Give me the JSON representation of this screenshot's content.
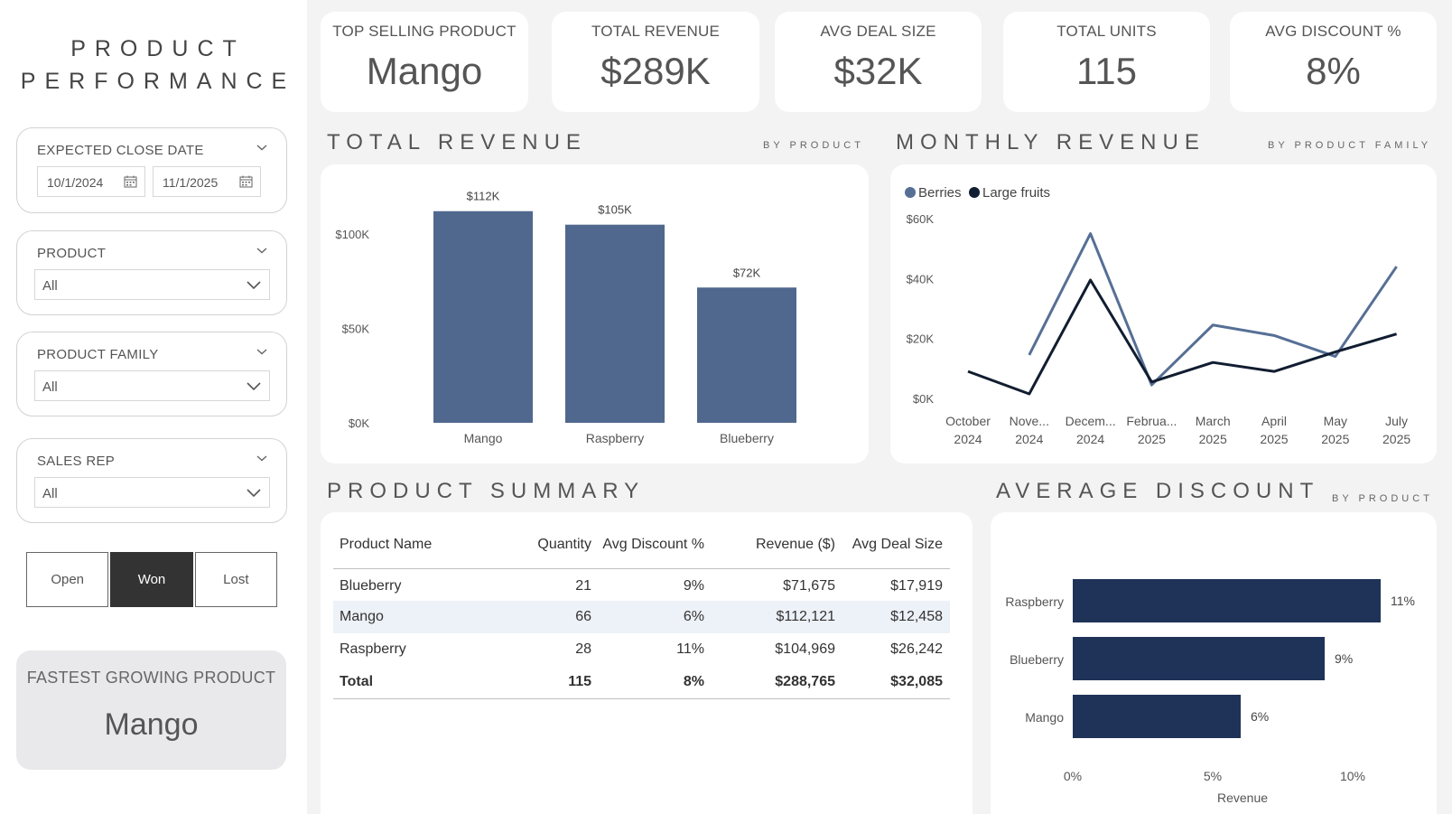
{
  "sidebar": {
    "title_line1": "PRODUCT",
    "title_line2": "PERFORMANCE",
    "close_date": {
      "label": "EXPECTED CLOSE DATE",
      "start": "10/1/2024",
      "end": "11/1/2025"
    },
    "product": {
      "label": "PRODUCT",
      "value": "All"
    },
    "product_family": {
      "label": "PRODUCT FAMILY",
      "value": "All"
    },
    "sales_rep": {
      "label": "SALES REP",
      "value": "All"
    },
    "status": {
      "open": "Open",
      "won": "Won",
      "lost": "Lost",
      "selected": "Won"
    },
    "fastest": {
      "label": "FASTEST GROWING PRODUCT",
      "value": "Mango"
    }
  },
  "kpis": {
    "top_product": {
      "label": "TOP SELLING PRODUCT",
      "value": "Mango"
    },
    "total_revenue": {
      "label": "TOTAL REVENUE",
      "value": "$289K"
    },
    "avg_deal": {
      "label": "AVG DEAL SIZE",
      "value": "$32K"
    },
    "total_units": {
      "label": "TOTAL UNITS",
      "value": "115"
    },
    "avg_discount": {
      "label": "AVG DISCOUNT %",
      "value": "8%"
    }
  },
  "sections": {
    "total_revenue": {
      "title": "TOTAL REVENUE",
      "sub": "BY PRODUCT"
    },
    "monthly_revenue": {
      "title": "MONTHLY REVENUE",
      "sub": "BY PRODUCT FAMILY"
    },
    "product_summary": {
      "title": "PRODUCT SUMMARY"
    },
    "average_discount": {
      "title": "AVERAGE DISCOUNT",
      "sub": "BY PRODUCT"
    }
  },
  "colors": {
    "bar": "#50688e",
    "berries": "#566f95",
    "large_fruits": "#111d30",
    "discount_bar": "#1f3358"
  },
  "chart_data": [
    {
      "type": "bar",
      "categories": [
        "Mango",
        "Raspberry",
        "Blueberry"
      ],
      "values": [
        112121,
        104969,
        71675
      ],
      "data_labels": [
        "$112K",
        "$105K",
        "$72K"
      ],
      "yticks": [
        "$0K",
        "$50K",
        "$100K"
      ],
      "ylim": [
        0,
        112000
      ]
    },
    {
      "type": "line",
      "categories": [
        [
          "October",
          "2024"
        ],
        [
          "Nove...",
          "2024"
        ],
        [
          "Decem...",
          "2024"
        ],
        [
          "Februa...",
          "2025"
        ],
        [
          "March",
          "2025"
        ],
        [
          "April",
          "2025"
        ],
        [
          "May",
          "2025"
        ],
        [
          "July",
          "2025"
        ]
      ],
      "series": [
        {
          "name": "Berries",
          "values": [
            null,
            14500,
            55000,
            4500,
            24500,
            21000,
            14000,
            44000
          ]
        },
        {
          "name": "Large fruits",
          "values": [
            9000,
            1500,
            39500,
            5500,
            12000,
            9000,
            15500,
            21500
          ]
        }
      ],
      "yticks": [
        "$0K",
        "$20K",
        "$40K",
        "$60K"
      ],
      "ylim": [
        0,
        60000
      ]
    },
    {
      "type": "bar",
      "orientation": "horizontal",
      "categories": [
        "Raspberry",
        "Blueberry",
        "Mango"
      ],
      "values": [
        11,
        9,
        6
      ],
      "data_labels": [
        "11%",
        "9%",
        "6%"
      ],
      "xticks": [
        "0%",
        "5%",
        "10%"
      ],
      "xlabel": "Revenue",
      "xlim": [
        0,
        10
      ]
    }
  ],
  "table": {
    "headers": [
      "Product Name",
      "Quantity",
      "Avg Discount %",
      "Revenue ($)",
      "Avg Deal Size"
    ],
    "rows": [
      [
        "Blueberry",
        "21",
        "9%",
        "$71,675",
        "$17,919"
      ],
      [
        "Mango",
        "66",
        "6%",
        "$112,121",
        "$12,458"
      ],
      [
        "Raspberry",
        "28",
        "11%",
        "$104,969",
        "$26,242"
      ]
    ],
    "total": [
      "Total",
      "115",
      "8%",
      "$288,765",
      "$32,085"
    ]
  }
}
